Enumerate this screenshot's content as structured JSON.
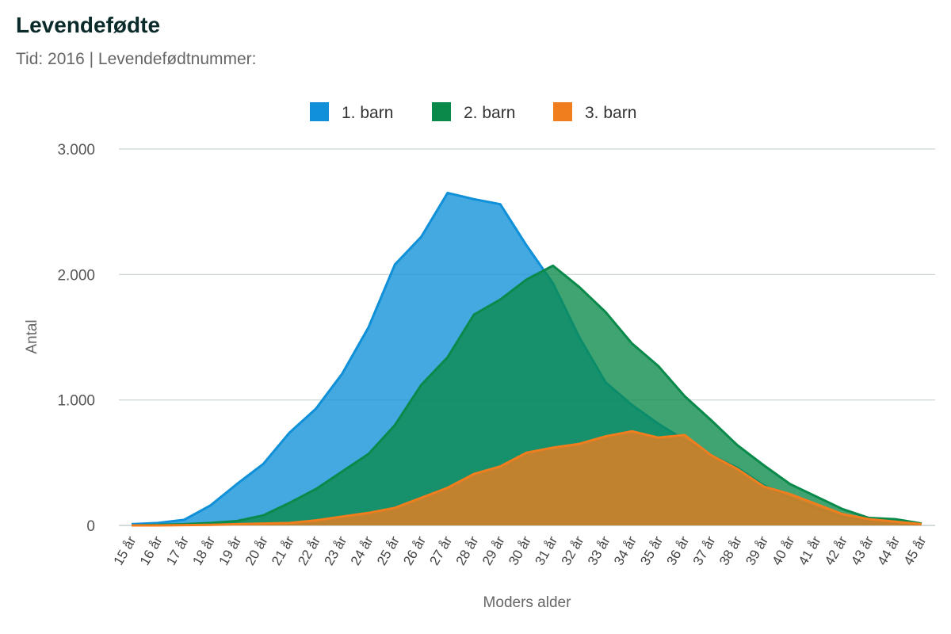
{
  "header": {
    "title": "Levendefødte",
    "subtitle": "Tid: 2016 | Levendefødtnummer:"
  },
  "chart_data": {
    "type": "area",
    "xlabel": "Moders alder",
    "ylabel": "Antal",
    "ylim": [
      0,
      3000
    ],
    "yticks": [
      0,
      1000,
      2000,
      3000
    ],
    "ytick_labels": [
      "0",
      "1.000",
      "2.000",
      "3.000"
    ],
    "grid": true,
    "legend_position": "top-center",
    "categories": [
      "15 år",
      "16 år",
      "17 år",
      "18 år",
      "19 år",
      "20 år",
      "21 år",
      "22 år",
      "23 år",
      "24 år",
      "25 år",
      "26 år",
      "27 år",
      "28 år",
      "29 år",
      "30 år",
      "31 år",
      "32 år",
      "33 år",
      "34 år",
      "35 år",
      "36 år",
      "37 år",
      "38 år",
      "39 år",
      "40 år",
      "41 år",
      "42 år",
      "43 år",
      "44 år",
      "45 år"
    ],
    "series": [
      {
        "name": "1. barn",
        "color": "#0f90d8",
        "values": [
          10,
          20,
          45,
          160,
          330,
          490,
          740,
          930,
          1210,
          1580,
          2080,
          2300,
          2650,
          2600,
          2560,
          2230,
          1930,
          1500,
          1140,
          960,
          810,
          680,
          560,
          460,
          320,
          220,
          140,
          70,
          40,
          20,
          10
        ]
      },
      {
        "name": "2. barn",
        "color": "#0a8a4a",
        "values": [
          0,
          5,
          10,
          20,
          35,
          80,
          180,
          290,
          430,
          570,
          800,
          1120,
          1340,
          1680,
          1800,
          1960,
          2070,
          1900,
          1700,
          1450,
          1270,
          1030,
          840,
          640,
          480,
          330,
          230,
          130,
          60,
          50,
          15
        ]
      },
      {
        "name": "3. barn",
        "color": "#f07d1e",
        "values": [
          0,
          0,
          2,
          5,
          10,
          15,
          20,
          40,
          70,
          100,
          140,
          220,
          300,
          410,
          470,
          580,
          620,
          650,
          710,
          750,
          700,
          720,
          560,
          450,
          310,
          250,
          170,
          90,
          50,
          30,
          10
        ]
      }
    ]
  }
}
